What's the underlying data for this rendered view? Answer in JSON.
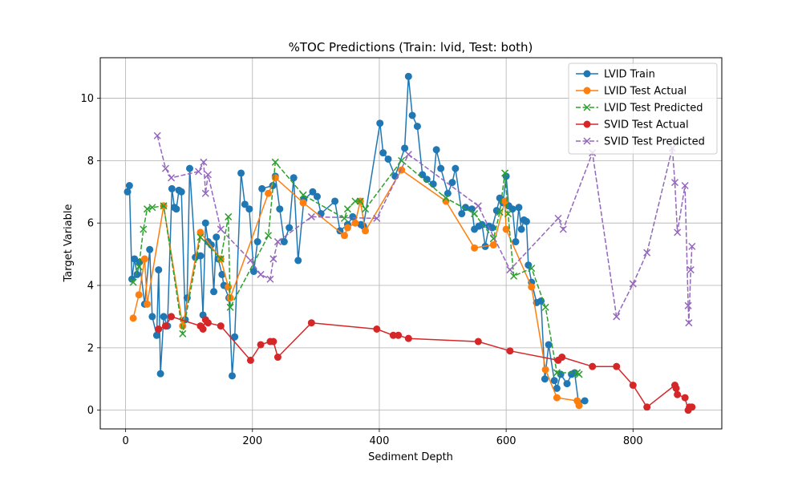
{
  "chart_data": {
    "type": "line",
    "title": "%TOC Predictions (Train: lvid, Test: both)",
    "xlabel": "Sediment Depth",
    "ylabel": "Target Variable",
    "xlim": [
      -40,
      940
    ],
    "ylim": [
      -0.6,
      11.3
    ],
    "x_ticks": [
      0,
      200,
      400,
      600,
      800
    ],
    "y_ticks": [
      0,
      2,
      4,
      6,
      8,
      10
    ],
    "grid": true,
    "legend_position": "top-right",
    "series": [
      {
        "name": "LVID Train",
        "color": "#1f77b4",
        "marker": "circle",
        "dash": "solid",
        "points": [
          [
            3,
            7.0
          ],
          [
            6,
            7.2
          ],
          [
            10,
            4.2
          ],
          [
            14,
            4.85
          ],
          [
            18,
            4.35
          ],
          [
            22,
            4.75
          ],
          [
            30,
            3.4
          ],
          [
            38,
            5.15
          ],
          [
            42,
            3.0
          ],
          [
            49,
            2.4
          ],
          [
            52,
            4.5
          ],
          [
            55,
            1.17
          ],
          [
            60,
            3.0
          ],
          [
            66,
            2.7
          ],
          [
            73,
            7.1
          ],
          [
            77,
            6.5
          ],
          [
            80,
            6.45
          ],
          [
            84,
            7.05
          ],
          [
            88,
            7.0
          ],
          [
            94,
            2.9
          ],
          [
            97,
            3.6
          ],
          [
            101,
            7.75
          ],
          [
            110,
            4.9
          ],
          [
            118,
            4.95
          ],
          [
            122,
            3.05
          ],
          [
            126,
            6.0
          ],
          [
            130,
            5.4
          ],
          [
            135,
            5.3
          ],
          [
            139,
            3.8
          ],
          [
            143,
            5.55
          ],
          [
            146,
            4.85
          ],
          [
            152,
            4.35
          ],
          [
            155,
            4.0
          ],
          [
            163,
            3.6
          ],
          [
            168,
            1.1
          ],
          [
            172,
            2.35
          ],
          [
            182,
            7.6
          ],
          [
            188,
            6.6
          ],
          [
            195,
            6.45
          ],
          [
            202,
            4.45
          ],
          [
            208,
            5.4
          ],
          [
            215,
            7.1
          ],
          [
            232,
            7.2
          ],
          [
            236,
            7.5
          ],
          [
            243,
            6.45
          ],
          [
            250,
            5.4
          ],
          [
            258,
            5.85
          ],
          [
            265,
            7.45
          ],
          [
            272,
            4.8
          ],
          [
            281,
            6.75
          ],
          [
            295,
            7.0
          ],
          [
            302,
            6.85
          ],
          [
            308,
            6.3
          ],
          [
            330,
            6.7
          ],
          [
            338,
            5.75
          ],
          [
            350,
            5.95
          ],
          [
            358,
            6.2
          ],
          [
            371,
            5.95
          ],
          [
            375,
            5.9
          ],
          [
            401,
            9.2
          ],
          [
            406,
            8.25
          ],
          [
            414,
            8.05
          ],
          [
            425,
            7.5
          ],
          [
            440,
            8.4
          ],
          [
            446,
            10.7
          ],
          [
            452,
            9.45
          ],
          [
            460,
            9.1
          ],
          [
            468,
            7.55
          ],
          [
            475,
            7.4
          ],
          [
            485,
            7.25
          ],
          [
            490,
            8.35
          ],
          [
            497,
            7.75
          ],
          [
            508,
            6.95
          ],
          [
            515,
            7.3
          ],
          [
            520,
            7.75
          ],
          [
            530,
            6.3
          ],
          [
            536,
            6.5
          ],
          [
            546,
            6.45
          ],
          [
            550,
            5.8
          ],
          [
            557,
            5.9
          ],
          [
            562,
            5.95
          ],
          [
            567,
            5.25
          ],
          [
            573,
            5.9
          ],
          [
            578,
            5.85
          ],
          [
            585,
            6.4
          ],
          [
            590,
            6.8
          ],
          [
            595,
            6.65
          ],
          [
            600,
            7.5
          ],
          [
            604,
            6.55
          ],
          [
            610,
            6.45
          ],
          [
            615,
            5.4
          ],
          [
            620,
            6.5
          ],
          [
            624,
            5.8
          ],
          [
            628,
            6.1
          ],
          [
            632,
            6.05
          ],
          [
            635,
            4.65
          ],
          [
            640,
            4.1
          ],
          [
            648,
            3.45
          ],
          [
            655,
            3.5
          ],
          [
            661,
            1.0
          ],
          [
            667,
            2.1
          ],
          [
            676,
            0.95
          ],
          [
            680,
            0.7
          ],
          [
            686,
            1.15
          ],
          [
            696,
            0.85
          ],
          [
            703,
            1.15
          ],
          [
            708,
            1.2
          ],
          [
            714,
            0.25
          ],
          [
            724,
            0.3
          ]
        ]
      },
      {
        "name": "LVID Test Actual",
        "color": "#ff7f0e",
        "marker": "circle",
        "dash": "solid",
        "points": [
          [
            12,
            2.95
          ],
          [
            21,
            3.7
          ],
          [
            30,
            4.85
          ],
          [
            34,
            3.4
          ],
          [
            60,
            6.55
          ],
          [
            90,
            2.7
          ],
          [
            118,
            5.7
          ],
          [
            150,
            4.85
          ],
          [
            162,
            3.95
          ],
          [
            165,
            3.6
          ],
          [
            225,
            6.95
          ],
          [
            236,
            7.45
          ],
          [
            280,
            6.65
          ],
          [
            345,
            5.6
          ],
          [
            350,
            5.85
          ],
          [
            362,
            6.0
          ],
          [
            370,
            6.7
          ],
          [
            378,
            5.75
          ],
          [
            435,
            7.7
          ],
          [
            505,
            6.7
          ],
          [
            550,
            5.2
          ],
          [
            580,
            5.3
          ],
          [
            598,
            6.7
          ],
          [
            600,
            5.8
          ],
          [
            640,
            3.95
          ],
          [
            662,
            1.3
          ],
          [
            680,
            0.4
          ],
          [
            712,
            0.3
          ],
          [
            715,
            0.15
          ]
        ]
      },
      {
        "name": "LVID Test Predicted",
        "color": "#2ca02c",
        "marker": "x",
        "dash": "dashed",
        "points": [
          [
            12,
            4.1
          ],
          [
            21,
            4.6
          ],
          [
            28,
            5.8
          ],
          [
            34,
            6.45
          ],
          [
            42,
            6.5
          ],
          [
            60,
            6.55
          ],
          [
            90,
            2.45
          ],
          [
            118,
            5.55
          ],
          [
            150,
            4.85
          ],
          [
            162,
            6.2
          ],
          [
            165,
            3.3
          ],
          [
            225,
            5.6
          ],
          [
            236,
            7.95
          ],
          [
            280,
            6.9
          ],
          [
            345,
            6.15
          ],
          [
            350,
            6.45
          ],
          [
            362,
            6.7
          ],
          [
            370,
            6.7
          ],
          [
            378,
            6.45
          ],
          [
            435,
            8.0
          ],
          [
            505,
            6.8
          ],
          [
            550,
            6.3
          ],
          [
            580,
            5.5
          ],
          [
            590,
            6.35
          ],
          [
            598,
            7.6
          ],
          [
            603,
            6.3
          ],
          [
            612,
            4.3
          ],
          [
            640,
            4.55
          ],
          [
            662,
            3.3
          ],
          [
            680,
            1.2
          ],
          [
            712,
            1.2
          ],
          [
            715,
            1.15
          ]
        ]
      },
      {
        "name": "SVID Test Actual",
        "color": "#d62728",
        "marker": "circle",
        "dash": "solid",
        "points": [
          [
            52,
            2.6
          ],
          [
            63,
            2.7
          ],
          [
            72,
            3.0
          ],
          [
            118,
            2.7
          ],
          [
            122,
            2.6
          ],
          [
            126,
            2.9
          ],
          [
            130,
            2.8
          ],
          [
            150,
            2.7
          ],
          [
            197,
            1.6
          ],
          [
            213,
            2.1
          ],
          [
            228,
            2.2
          ],
          [
            233,
            2.2
          ],
          [
            240,
            1.7
          ],
          [
            293,
            2.8
          ],
          [
            396,
            2.6
          ],
          [
            422,
            2.4
          ],
          [
            430,
            2.4
          ],
          [
            446,
            2.3
          ],
          [
            556,
            2.2
          ],
          [
            606,
            1.9
          ],
          [
            682,
            1.6
          ],
          [
            688,
            1.7
          ],
          [
            736,
            1.4
          ],
          [
            774,
            1.4
          ],
          [
            800,
            0.8
          ],
          [
            822,
            0.1
          ],
          [
            866,
            0.8
          ],
          [
            868,
            0.7
          ],
          [
            870,
            0.5
          ],
          [
            882,
            0.4
          ],
          [
            887,
            0.0
          ],
          [
            889,
            0.1
          ],
          [
            893,
            0.1
          ]
        ]
      },
      {
        "name": "SVID Test Predicted",
        "color": "#9467bd",
        "marker": "x",
        "dash": "dashed",
        "points": [
          [
            50,
            8.8
          ],
          [
            63,
            7.75
          ],
          [
            72,
            7.45
          ],
          [
            115,
            7.65
          ],
          [
            123,
            7.95
          ],
          [
            126,
            6.95
          ],
          [
            130,
            7.55
          ],
          [
            150,
            5.8
          ],
          [
            197,
            4.8
          ],
          [
            213,
            4.35
          ],
          [
            228,
            4.2
          ],
          [
            233,
            4.85
          ],
          [
            240,
            5.4
          ],
          [
            293,
            6.2
          ],
          [
            396,
            6.15
          ],
          [
            446,
            8.2
          ],
          [
            556,
            6.55
          ],
          [
            606,
            4.5
          ],
          [
            682,
            6.15
          ],
          [
            690,
            5.8
          ],
          [
            736,
            8.25
          ],
          [
            774,
            3.0
          ],
          [
            800,
            4.05
          ],
          [
            822,
            5.05
          ],
          [
            862,
            8.4
          ],
          [
            866,
            7.3
          ],
          [
            870,
            5.7
          ],
          [
            882,
            7.2
          ],
          [
            887,
            3.35
          ],
          [
            888,
            2.8
          ],
          [
            891,
            4.5
          ],
          [
            893,
            5.25
          ]
        ]
      }
    ]
  }
}
